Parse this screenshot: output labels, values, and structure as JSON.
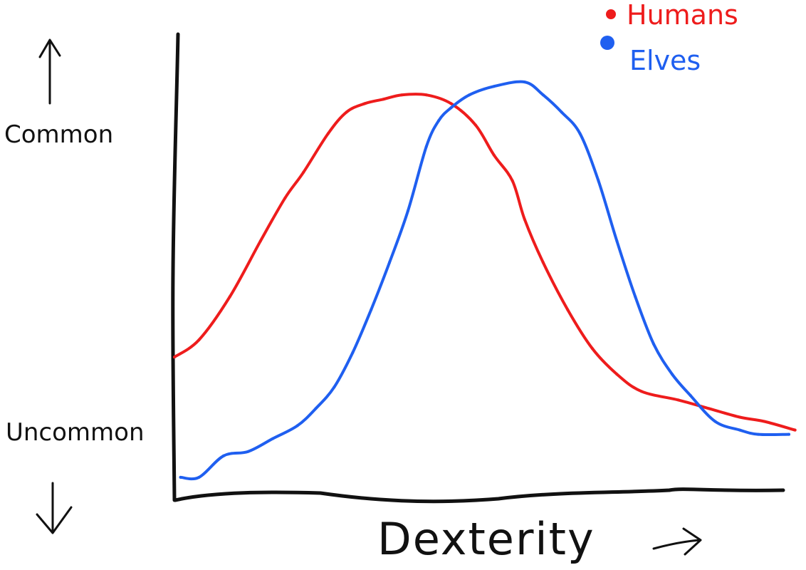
{
  "chart_data": {
    "type": "line",
    "xlabel": "Dexterity",
    "ylabel_top": "Common",
    "ylabel_bottom": "Uncommon",
    "xlim": [
      0,
      100
    ],
    "ylim": [
      0,
      100
    ],
    "grid": false,
    "legend_position": "top-right",
    "series": [
      {
        "name": "Humans",
        "color": "#ee1c1c",
        "x": [
          0,
          4,
          9,
          14,
          18,
          21,
          25,
          28,
          31,
          34,
          37,
          41,
          45,
          49,
          52,
          55,
          57,
          60,
          64,
          68,
          72,
          76,
          82,
          87,
          92,
          96,
          101
        ],
        "y": [
          31,
          35,
          45,
          58,
          68,
          74,
          83,
          88,
          90,
          91,
          92,
          92,
          90,
          85,
          78,
          72,
          63,
          53,
          42,
          33,
          27,
          23,
          21,
          19,
          17,
          16,
          14
        ]
      },
      {
        "name": "Elves",
        "color": "#1f5ff0",
        "x": [
          1,
          4,
          8,
          12,
          16,
          20,
          23,
          26,
          29,
          32,
          35,
          38,
          41,
          43,
          45,
          48,
          52,
          57,
          60,
          63,
          66,
          69,
          72,
          75,
          78,
          81,
          84,
          88,
          92,
          95,
          100
        ],
        "y": [
          3,
          3,
          8,
          9,
          12,
          15,
          19,
          24,
          32,
          42,
          53,
          65,
          80,
          86,
          89,
          92,
          94,
          95,
          92,
          88,
          83,
          72,
          58,
          45,
          34,
          27,
          22,
          16,
          14,
          13,
          13
        ]
      }
    ]
  }
}
